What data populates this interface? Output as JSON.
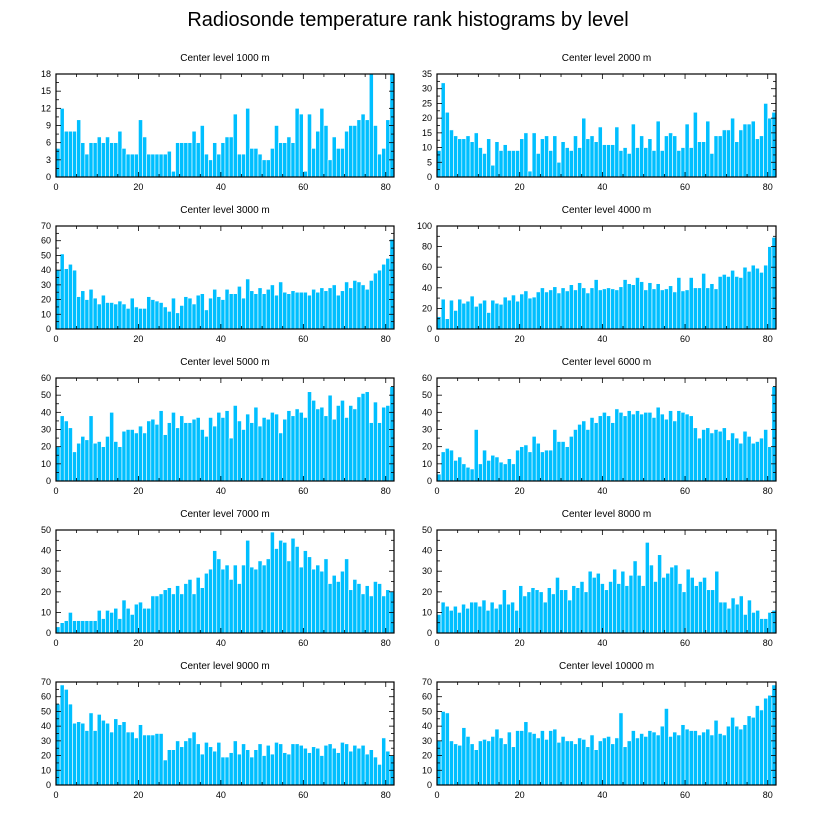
{
  "title": "Radiosonde temperature rank histograms by level",
  "colors": {
    "bar": "#00BFFF",
    "bar_edge": "#ffffff",
    "axis": "#000000"
  },
  "chart_data": [
    {
      "type": "bar",
      "title": "Center level 1000 m",
      "xlim": [
        0,
        82
      ],
      "xticks": [
        0,
        20,
        40,
        60,
        80
      ],
      "ylim": [
        0,
        18
      ],
      "yticks": [
        0,
        3,
        6,
        9,
        12,
        15,
        18
      ],
      "values": [
        5,
        12,
        8,
        8,
        8,
        10,
        6,
        4,
        6,
        6,
        7,
        6,
        7,
        6,
        6,
        8,
        5,
        4,
        4,
        4,
        10,
        7,
        4,
        4,
        4,
        4,
        4,
        4.5,
        1,
        6,
        6,
        6,
        6,
        8,
        6,
        9,
        4,
        3,
        6,
        4,
        6,
        7,
        7,
        11,
        4,
        4,
        12,
        5,
        5,
        4,
        3,
        3,
        5,
        9,
        6,
        6,
        7,
        6,
        12,
        11,
        1,
        11,
        5,
        8,
        12,
        9,
        3,
        7,
        5,
        5,
        8,
        9,
        9,
        10,
        11,
        10,
        18,
        9,
        4,
        5,
        10,
        18
      ]
    },
    {
      "type": "bar",
      "title": "Center level 2000 m",
      "xlim": [
        0,
        82
      ],
      "xticks": [
        0,
        20,
        40,
        60,
        80
      ],
      "ylim": [
        0,
        35
      ],
      "yticks": [
        0,
        5,
        10,
        15,
        20,
        25,
        30,
        35
      ],
      "values": [
        9,
        32,
        22,
        16,
        14,
        13,
        13,
        14,
        12,
        15,
        10,
        8,
        13,
        4,
        12,
        9,
        11,
        9,
        9,
        9,
        13,
        15,
        2,
        15,
        8,
        13,
        14,
        9,
        14,
        5,
        12,
        10,
        9,
        14,
        10,
        20,
        13,
        14,
        12,
        17,
        11,
        11,
        11,
        17,
        9,
        10,
        8,
        18,
        10,
        14,
        10,
        13,
        9,
        19,
        9,
        14,
        15,
        14,
        9,
        10,
        18,
        10,
        22,
        12,
        12,
        19,
        8,
        14,
        14,
        16,
        16,
        20,
        12,
        16,
        18,
        18,
        19,
        13,
        14,
        25,
        20,
        22
      ]
    },
    {
      "type": "bar",
      "title": "Center level 3000 m",
      "xlim": [
        0,
        82
      ],
      "xticks": [
        0,
        20,
        40,
        60,
        80
      ],
      "ylim": [
        0,
        70
      ],
      "yticks": [
        0,
        10,
        20,
        30,
        40,
        50,
        60,
        70
      ],
      "values": [
        40,
        51,
        41,
        44,
        40,
        22,
        26,
        20,
        27,
        21,
        17,
        23,
        18,
        18,
        17,
        19,
        17,
        14,
        21,
        15,
        14,
        14,
        22,
        20,
        19,
        18,
        15,
        12,
        21,
        11,
        16,
        22,
        21,
        17,
        23,
        24,
        13,
        21,
        27,
        22,
        20,
        27,
        24,
        24,
        29,
        21,
        34,
        26,
        24,
        28,
        24,
        27,
        30,
        23,
        32,
        25,
        24,
        26,
        25,
        25,
        25,
        23,
        27,
        25,
        28,
        26,
        28,
        30,
        23,
        26,
        32,
        28,
        33,
        32,
        30,
        27,
        33,
        38,
        40,
        44,
        48,
        61
      ]
    },
    {
      "type": "bar",
      "title": "Center level 4000 m",
      "xlim": [
        0,
        82
      ],
      "xticks": [
        0,
        20,
        40,
        60,
        80
      ],
      "ylim": [
        0,
        100
      ],
      "yticks": [
        0,
        20,
        40,
        60,
        80,
        100
      ],
      "values": [
        12,
        29,
        10,
        28,
        18,
        29,
        25,
        27,
        32,
        22,
        25,
        28,
        16,
        28,
        25,
        24,
        31,
        28,
        33,
        27,
        34,
        37,
        30,
        31,
        36,
        40,
        36,
        38,
        41,
        35,
        40,
        37,
        43,
        38,
        45,
        40,
        35,
        40,
        48,
        38,
        39,
        40,
        39,
        38,
        41,
        48,
        44,
        43,
        50,
        46,
        38,
        45,
        39,
        44,
        38,
        39,
        42,
        36,
        50,
        37,
        38,
        50,
        40,
        40,
        54,
        40,
        44,
        39,
        51,
        53,
        51,
        57,
        51,
        50,
        60,
        56,
        62,
        59,
        55,
        62,
        80,
        89
      ]
    },
    {
      "type": "bar",
      "title": "Center level 5000 m",
      "xlim": [
        0,
        82
      ],
      "xticks": [
        0,
        20,
        40,
        60,
        80
      ],
      "ylim": [
        0,
        60
      ],
      "yticks": [
        0,
        10,
        20,
        30,
        40,
        50,
        60
      ],
      "values": [
        20,
        38,
        35,
        31,
        17,
        22,
        26,
        24,
        38,
        22,
        23,
        20,
        26,
        40,
        23,
        20,
        29,
        30,
        30,
        28,
        32,
        28,
        35,
        36,
        33,
        41,
        27,
        34,
        40,
        31,
        38,
        34,
        34,
        36,
        37,
        30,
        26,
        37,
        32,
        40,
        37,
        41,
        25,
        44,
        35,
        30,
        39,
        34,
        43,
        32,
        37,
        36,
        40,
        39,
        28,
        36,
        41,
        38,
        42,
        40,
        37,
        52,
        47,
        42,
        43,
        38,
        50,
        36,
        44,
        47,
        37,
        44,
        42,
        49,
        51,
        52,
        34,
        46,
        34,
        43,
        44,
        55
      ]
    },
    {
      "type": "bar",
      "title": "Center level 6000 m",
      "xlim": [
        0,
        82
      ],
      "xticks": [
        0,
        20,
        40,
        60,
        80
      ],
      "ylim": [
        0,
        60
      ],
      "yticks": [
        0,
        10,
        20,
        30,
        40,
        50,
        60
      ],
      "values": [
        4,
        17,
        19,
        18,
        12,
        14,
        10,
        8,
        7,
        30,
        10,
        18,
        12,
        15,
        14,
        11,
        10,
        13,
        10,
        18,
        20,
        21,
        17,
        26,
        22,
        17,
        18,
        18,
        30,
        23,
        23,
        20,
        26,
        30,
        33,
        35,
        30,
        37,
        34,
        38,
        40,
        38,
        34,
        42,
        40,
        38,
        41,
        39,
        41,
        39,
        40,
        40,
        37,
        43,
        39,
        36,
        41,
        35,
        41,
        40,
        39,
        38,
        31,
        25,
        30,
        31,
        28,
        30,
        29,
        31,
        24,
        28,
        25,
        22,
        29,
        26,
        22,
        23,
        25,
        30,
        20,
        55
      ]
    },
    {
      "type": "bar",
      "title": "Center level 7000 m",
      "xlim": [
        0,
        82
      ],
      "xticks": [
        0,
        20,
        40,
        60,
        80
      ],
      "ylim": [
        0,
        50
      ],
      "yticks": [
        0,
        10,
        20,
        30,
        40,
        50
      ],
      "values": [
        3,
        5,
        6,
        10,
        6,
        6,
        6,
        6,
        6,
        6,
        11,
        7,
        11,
        10,
        12,
        7,
        16,
        12,
        9,
        14,
        15,
        12,
        12,
        18,
        18,
        19,
        21,
        22,
        19,
        23,
        19,
        24,
        26,
        19,
        27,
        22,
        29,
        31,
        40,
        36,
        31,
        33,
        26,
        33,
        24,
        33,
        45,
        32,
        31,
        35,
        33,
        36,
        49,
        41,
        45,
        44,
        35,
        46,
        42,
        32,
        40,
        37,
        31,
        33,
        30,
        36,
        24,
        28,
        25,
        30,
        36,
        21,
        26,
        24,
        19,
        23,
        18,
        25,
        24,
        18,
        21,
        20
      ]
    },
    {
      "type": "bar",
      "title": "Center level 8000 m",
      "xlim": [
        0,
        82
      ],
      "xticks": [
        0,
        20,
        40,
        60,
        80
      ],
      "ylim": [
        0,
        50
      ],
      "yticks": [
        0,
        10,
        20,
        30,
        40,
        50
      ],
      "values": [
        9,
        15,
        13,
        11,
        13,
        10,
        14,
        12,
        15,
        15,
        13,
        16,
        11,
        15,
        12,
        14,
        21,
        14,
        15,
        11,
        23,
        18,
        20,
        22,
        21,
        20,
        15,
        22,
        19,
        27,
        21,
        21,
        16,
        23,
        22,
        25,
        20,
        30,
        27,
        29,
        24,
        21,
        25,
        31,
        24,
        30,
        23,
        28,
        35,
        28,
        23,
        44,
        33,
        25,
        38,
        27,
        29,
        32,
        33,
        24,
        20,
        31,
        27,
        23,
        25,
        27,
        21,
        21,
        30,
        15,
        15,
        12,
        17,
        14,
        18,
        9,
        16,
        10,
        11,
        7,
        7,
        10,
        11
      ]
    },
    {
      "type": "bar",
      "title": "Center level 9000 m",
      "xlim": [
        0,
        82
      ],
      "xticks": [
        0,
        20,
        40,
        60,
        80
      ],
      "ylim": [
        0,
        70
      ],
      "yticks": [
        0,
        10,
        20,
        30,
        40,
        50,
        60,
        70
      ],
      "values": [
        55,
        68,
        65,
        55,
        42,
        43,
        42,
        37,
        49,
        37,
        48,
        44,
        42,
        36,
        45,
        41,
        43,
        36,
        36,
        32,
        41,
        34,
        34,
        34,
        35,
        35,
        17,
        24,
        24,
        30,
        26,
        30,
        32,
        36,
        28,
        21,
        29,
        26,
        23,
        29,
        19,
        19,
        22,
        30,
        21,
        28,
        24,
        19,
        24,
        28,
        20,
        27,
        21,
        29,
        28,
        22,
        21,
        28,
        28,
        27,
        25,
        22,
        26,
        25,
        20,
        27,
        28,
        25,
        22,
        29,
        28,
        23,
        27,
        25,
        27,
        21,
        24,
        19,
        14,
        32,
        23,
        20
      ]
    },
    {
      "type": "bar",
      "title": "Center level 10000 m",
      "xlim": [
        0,
        82
      ],
      "xticks": [
        0,
        20,
        40,
        60,
        80
      ],
      "ylim": [
        0,
        70
      ],
      "yticks": [
        0,
        10,
        20,
        30,
        40,
        50,
        60,
        70
      ],
      "values": [
        30,
        50,
        49,
        30,
        28,
        27,
        39,
        33,
        28,
        24,
        30,
        31,
        30,
        33,
        38,
        32,
        28,
        36,
        26,
        37,
        37,
        43,
        36,
        35,
        32,
        37,
        31,
        37,
        38,
        29,
        33,
        30,
        30,
        28,
        32,
        31,
        26,
        34,
        24,
        30,
        32,
        33,
        28,
        32,
        49,
        26,
        30,
        37,
        32,
        35,
        33,
        37,
        36,
        34,
        40,
        52,
        33,
        36,
        34,
        41,
        38,
        37,
        37,
        34,
        36,
        38,
        34,
        44,
        35,
        34,
        40,
        46,
        40,
        38,
        41,
        47,
        46,
        54,
        51,
        59,
        61,
        68
      ]
    }
  ]
}
